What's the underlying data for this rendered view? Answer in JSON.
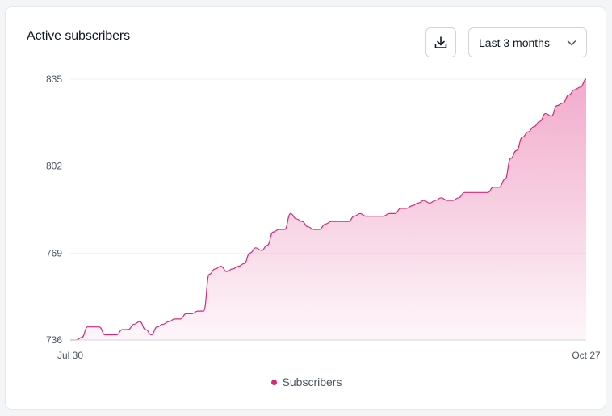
{
  "card": {
    "title": "Active subscribers",
    "download_icon": "download-icon",
    "range_select": {
      "value": "Last 3 months",
      "icon": "chevron-down-icon"
    }
  },
  "colors": {
    "accent": "#db2777",
    "fill_top": "#ec8fba",
    "grid": "#f1f2f4"
  },
  "chart_data": {
    "type": "area",
    "title": "",
    "xlabel": "",
    "ylabel": "",
    "x_tick_labels": [
      "Jul 30",
      "Oct 27"
    ],
    "y_ticks": [
      736,
      769,
      802,
      835
    ],
    "ylim": [
      736,
      835
    ],
    "grid": true,
    "legend_position": "bottom",
    "series": [
      {
        "name": "Subscribers",
        "color": "#db2777",
        "values": [
          736,
          736,
          737,
          741,
          741,
          741,
          738,
          738,
          738,
          740,
          740,
          742,
          743,
          740,
          738,
          741,
          742,
          743,
          744,
          744,
          746,
          746,
          747,
          747,
          761,
          763,
          764,
          762,
          763,
          764,
          765,
          769,
          771,
          770,
          772,
          777,
          778,
          778,
          784,
          782,
          781,
          779,
          778,
          778,
          780,
          781,
          781,
          781,
          781,
          783,
          784,
          783,
          783,
          783,
          783,
          784,
          784,
          786,
          786,
          787,
          788,
          789,
          788,
          789,
          790,
          789,
          789,
          790,
          792,
          792,
          792,
          792,
          792,
          794,
          794,
          797,
          805,
          808,
          813,
          815,
          817,
          819,
          822,
          821,
          825,
          826,
          829,
          831,
          832,
          835
        ]
      }
    ]
  }
}
